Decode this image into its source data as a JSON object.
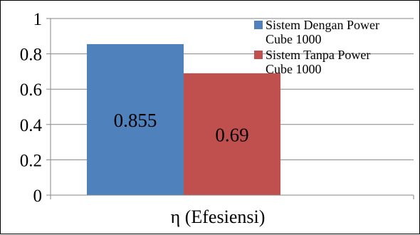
{
  "chart_data": {
    "type": "bar",
    "categories": [
      "η (Efesiensi)"
    ],
    "series": [
      {
        "name": "Sistem Dengan Power Cube 1000",
        "name_lines": [
          "Sistem Dengan Power",
          "Cube 1000"
        ],
        "values": [
          0.855
        ],
        "value_labels": [
          "0.855"
        ],
        "color": "#4F81BD"
      },
      {
        "name": "Sistem Tanpa Power Cube 1000",
        "name_lines": [
          "Sistem Tanpa Power",
          "Cube 1000"
        ],
        "values": [
          0.69
        ],
        "value_labels": [
          "0.69"
        ],
        "color": "#C0504D"
      }
    ],
    "ylim": [
      0,
      1
    ],
    "yticks": [
      0,
      0.2,
      0.4,
      0.6,
      0.8,
      1
    ],
    "ytick_labels": [
      "0",
      "0.2",
      "0.4",
      "0.6",
      "0.8",
      "1"
    ],
    "grid": true,
    "legend_position": "top-right",
    "title": "",
    "xlabel": "",
    "ylabel": ""
  }
}
